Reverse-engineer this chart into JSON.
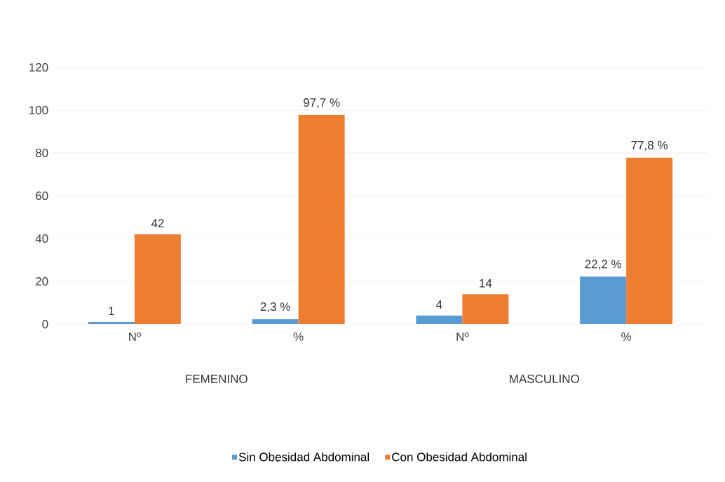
{
  "chart_data": {
    "type": "bar",
    "categories": [
      "Nº",
      "%",
      "Nº",
      "%"
    ],
    "series": [
      {
        "name": "Sin Obesidad Abdominal",
        "color": "#5b9bd5",
        "values": [
          1,
          2.3,
          4,
          22.2
        ],
        "value_labels": [
          "1",
          "2,3 %",
          "4",
          "22,2 %"
        ]
      },
      {
        "name": "Con Obesidad Abdominal",
        "color": "#ed7d31",
        "values": [
          42,
          97.7,
          14,
          77.8
        ],
        "value_labels": [
          "42",
          "97,7 %",
          "14",
          "77,8 %"
        ]
      }
    ],
    "annotations": [
      "FEMENINO",
      "MASCULINO"
    ],
    "ylim": [
      0,
      120
    ],
    "yticks": [
      0,
      20,
      40,
      60,
      80,
      100,
      120
    ],
    "grid": "y",
    "legend": "bottom"
  }
}
